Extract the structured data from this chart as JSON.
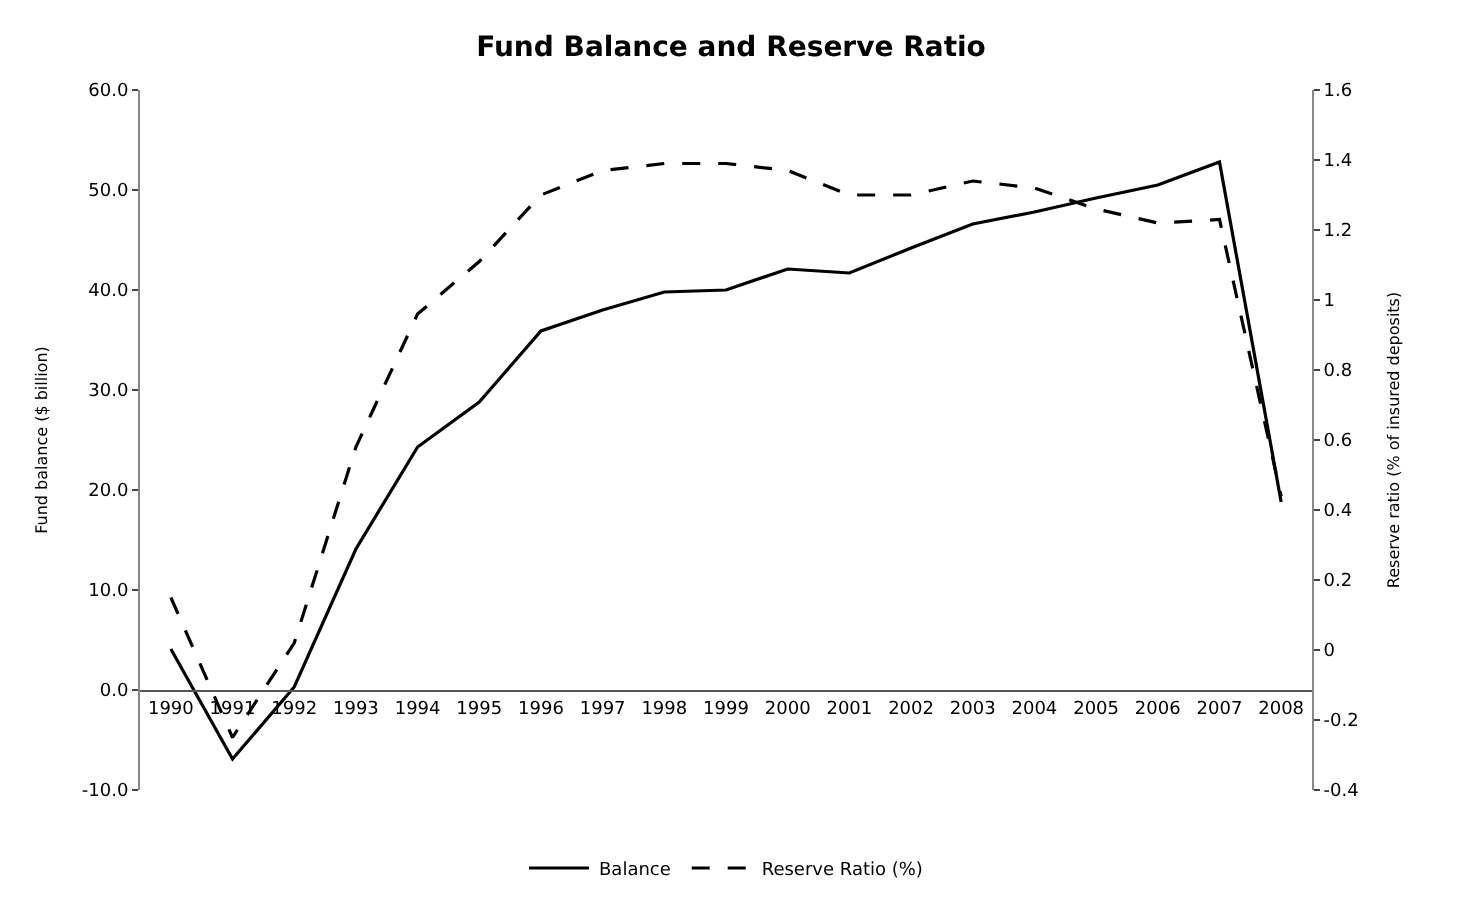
{
  "chart_data": {
    "type": "line",
    "title": "Fund Balance and Reserve Ratio",
    "ylabel": "Fund balance ($ billion)",
    "y2label": "Reserve ratio (% of insured deposits)",
    "categories": [
      "1990",
      "1991",
      "1992",
      "1993",
      "1994",
      "1995",
      "1996",
      "1997",
      "1998",
      "1999",
      "2000",
      "2001",
      "2002",
      "2003",
      "2004",
      "2005",
      "2006",
      "2007",
      "2008"
    ],
    "series": [
      {
        "name": "Balance",
        "color": "#000000",
        "line_style": "solid",
        "values": [
          4.1,
          -6.9,
          0.3,
          14.1,
          24.3,
          28.8,
          35.9,
          38.0,
          39.8,
          40.0,
          42.1,
          41.7,
          44.2,
          46.6,
          47.8,
          49.2,
          50.5,
          52.8,
          18.8
        ]
      },
      {
        "name": "Reserve Ratio (%)",
        "color": "#000000",
        "line_style": "dashed",
        "axis": "y2",
        "values": [
          0.15,
          -0.25,
          0.02,
          0.58,
          0.96,
          1.11,
          1.3,
          1.37,
          1.39,
          1.39,
          1.37,
          1.3,
          1.3,
          1.34,
          1.32,
          1.26,
          1.22,
          1.23,
          0.44
        ]
      }
    ],
    "ylim": [
      -10,
      60
    ],
    "yticks": [
      {
        "value": -10,
        "label": "-10.0"
      },
      {
        "value": 0,
        "label": "0.0"
      },
      {
        "value": 10,
        "label": "10.0"
      },
      {
        "value": 20,
        "label": "20.0"
      },
      {
        "value": 30,
        "label": "30.0"
      },
      {
        "value": 40,
        "label": "40.0"
      },
      {
        "value": 50,
        "label": "50.0"
      },
      {
        "value": 60,
        "label": "60.0"
      }
    ],
    "y2lim": [
      -0.4,
      1.6
    ],
    "y2ticks": [
      -0.4,
      -0.2,
      0,
      0.2,
      0.4,
      0.6,
      0.8,
      1,
      1.2,
      1.4,
      1.6
    ],
    "legend": "bottom",
    "marker": "none"
  }
}
